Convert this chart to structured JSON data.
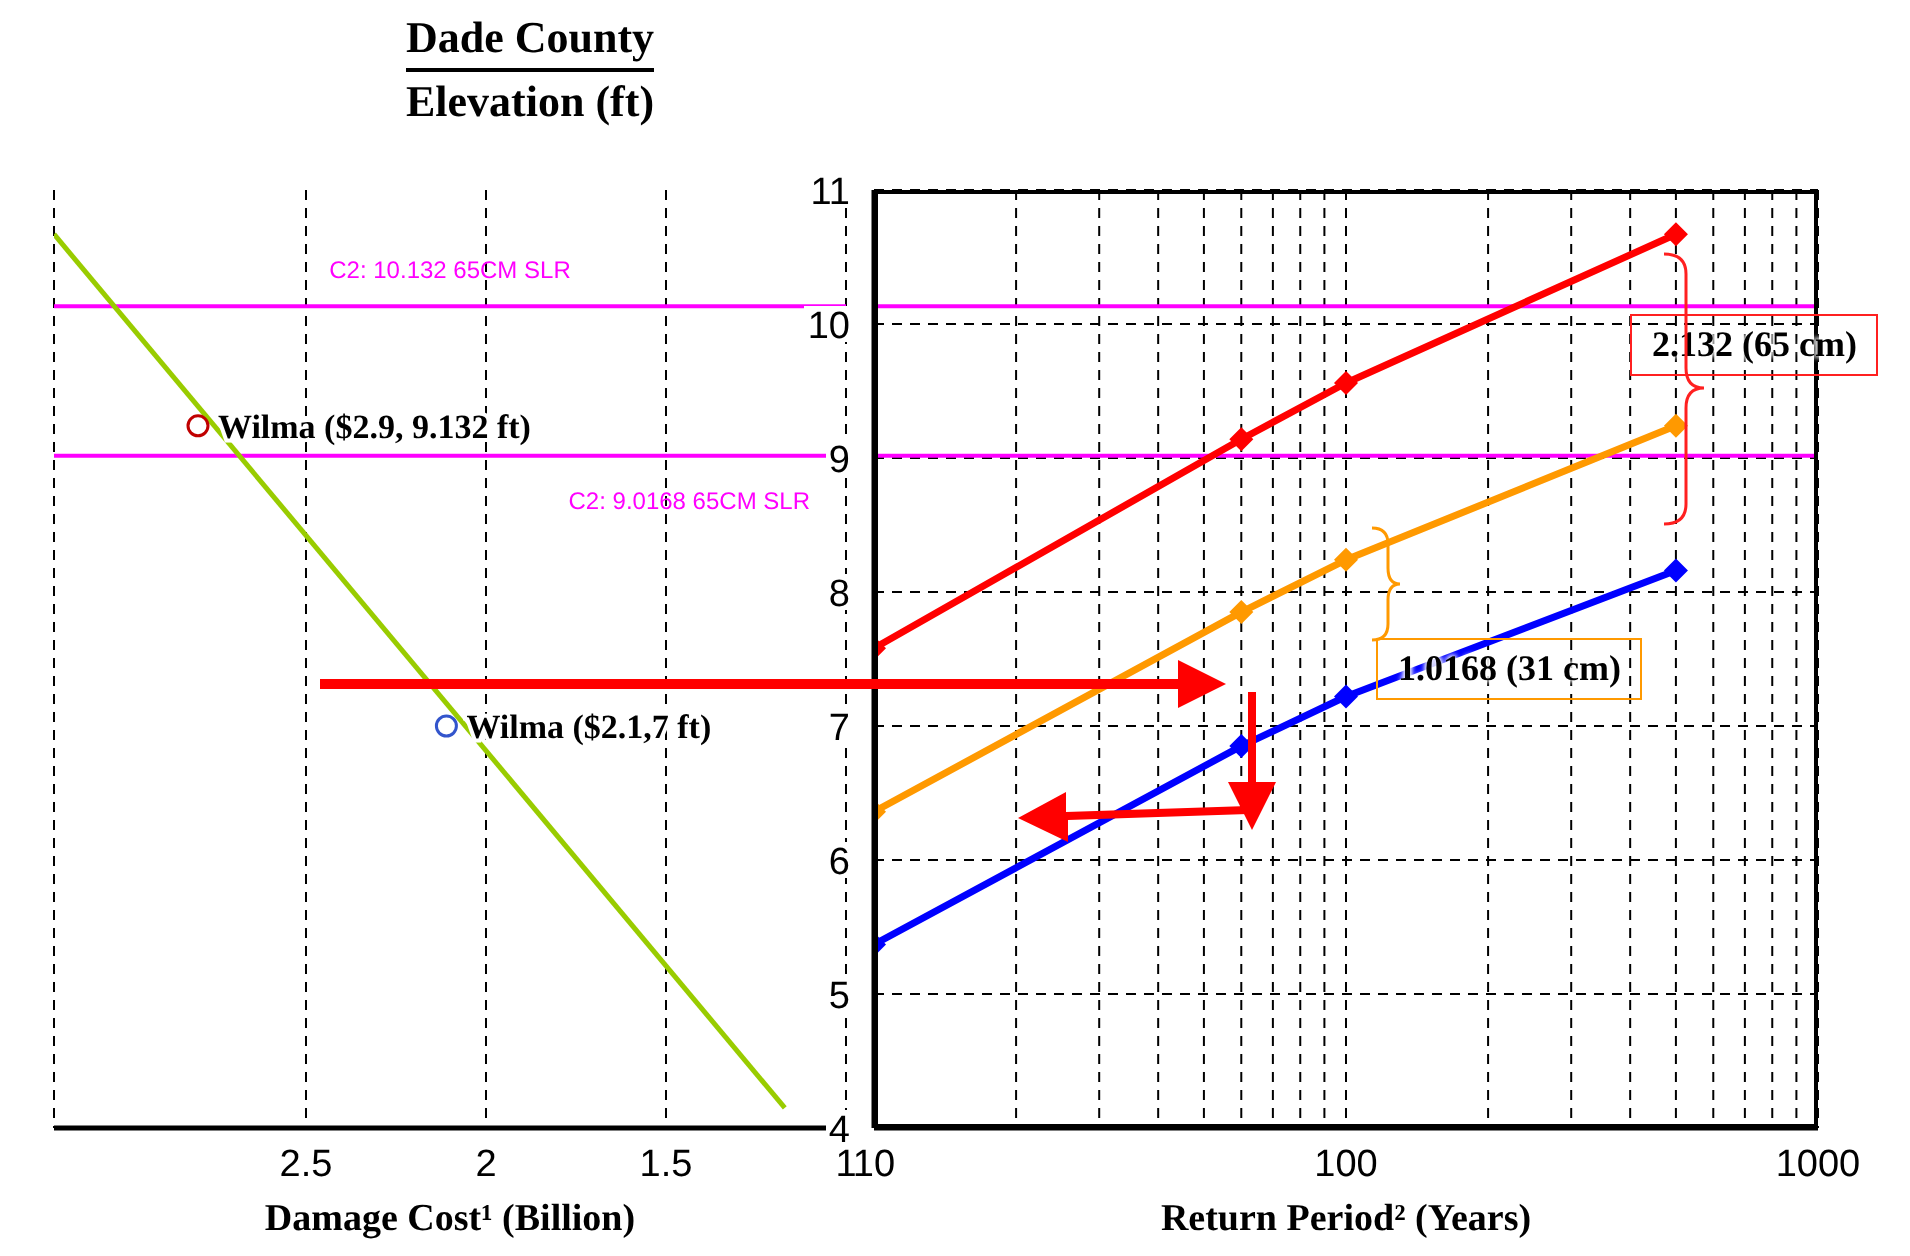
{
  "chart_data": [
    {
      "type": "line",
      "title": "Dade County",
      "ylabel": "Elevation (ft)",
      "xlabel": "Damage Cost¹ (Billion)",
      "xlim": [
        3.2,
        1
      ],
      "xticks": [
        2.5,
        2,
        1.5,
        1
      ],
      "ylim": [
        4,
        11
      ],
      "tick_labels": "x",
      "grid": "x",
      "series": [
        {
          "color": "#99cc00",
          "x": [
            3.2,
            1.17
          ],
          "values": [
            10.67,
            4.15
          ],
          "marker": "none"
        },
        {
          "type": "scatter",
          "color": "#c00000",
          "x": [
            2.8
          ],
          "values": [
            9.24
          ],
          "marker": "circle"
        },
        {
          "type": "scatter",
          "color": "#3355cc",
          "x": [
            2.11
          ],
          "values": [
            7.0
          ],
          "marker": "circle"
        }
      ],
      "ref_lines": [
        {
          "axis": "y",
          "value": 10.132,
          "label": "C2: 10.132 65CM SLR",
          "color": "#ff00ff"
        },
        {
          "axis": "y",
          "value": 9.0168,
          "label": "C2: 9.0168 65CM SLR",
          "color": "#ff00ff"
        }
      ],
      "annotations": [
        {
          "text": "Wilma ($2.9, 9.132 ft)",
          "x": 2.8,
          "y": 9.24
        },
        {
          "text": "Wilma ($2.1,7 ft)",
          "x": 2.11,
          "y": 7.0
        }
      ]
    },
    {
      "type": "line",
      "xlabel": "Return Period² (Years)",
      "log": "x",
      "x": [
        10,
        60,
        100,
        500
      ],
      "xlim": [
        10,
        1000
      ],
      "xticks": [
        10,
        {
          "value": 20,
          "label": null
        },
        {
          "value": 30,
          "label": null
        },
        {
          "value": 40,
          "label": null
        },
        {
          "value": 50,
          "label": null
        },
        {
          "value": 60,
          "label": null
        },
        {
          "value": 70,
          "label": null
        },
        {
          "value": 80,
          "label": null
        },
        {
          "value": 90,
          "label": null
        },
        100,
        {
          "value": 200,
          "label": null
        },
        {
          "value": 300,
          "label": null
        },
        {
          "value": 400,
          "label": null
        },
        {
          "value": 500,
          "label": null
        },
        {
          "value": 600,
          "label": null
        },
        {
          "value": 700,
          "label": null
        },
        {
          "value": 800,
          "label": null
        },
        {
          "value": 900,
          "label": null
        },
        1000
      ],
      "ylim": [
        4,
        11
      ],
      "yticks": [
        4,
        5,
        6,
        7,
        8,
        9,
        10,
        11
      ],
      "grid": true,
      "marker": "diamond",
      "series": [
        {
          "color": "#ff0000",
          "values": [
            7.58,
            9.14,
            9.56,
            10.67
          ]
        },
        {
          "color": "#ff9900",
          "values": [
            6.36,
            7.85,
            8.24,
            9.24
          ]
        },
        {
          "color": "#0000ff",
          "values": [
            5.37,
            6.85,
            7.22,
            8.16
          ]
        }
      ],
      "ref_lines": [
        {
          "axis": "y",
          "value": 10.132,
          "color": "#ff00ff"
        },
        {
          "axis": "y",
          "value": 9.0168,
          "color": "#ff00ff"
        }
      ],
      "annotations": [
        "2.132 (65 cm)",
        "1.0168 (31 cm)"
      ]
    }
  ]
}
